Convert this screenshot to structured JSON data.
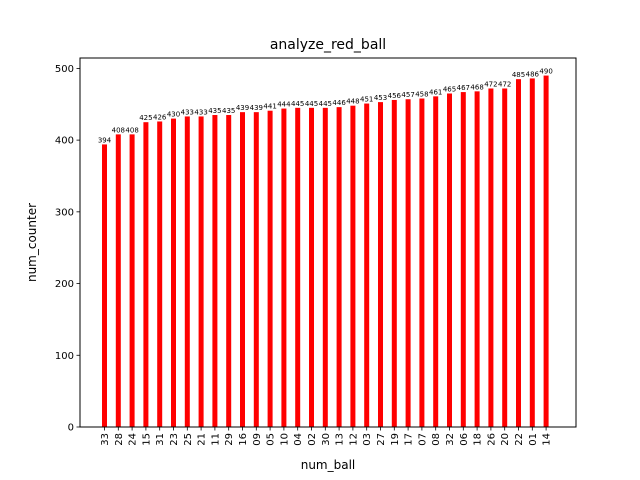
{
  "chart_data": {
    "type": "bar",
    "title": "analyze_red_ball",
    "xlabel": "num_ball",
    "ylabel": "num_counter",
    "categories": [
      "33",
      "28",
      "24",
      "15",
      "31",
      "23",
      "25",
      "21",
      "11",
      "29",
      "16",
      "09",
      "05",
      "10",
      "04",
      "02",
      "30",
      "13",
      "12",
      "03",
      "27",
      "19",
      "17",
      "07",
      "08",
      "32",
      "06",
      "18",
      "26",
      "20",
      "22",
      "01",
      "14"
    ],
    "values": [
      394,
      408,
      408,
      425,
      426,
      430,
      433,
      433,
      435,
      435,
      439,
      439,
      441,
      444,
      445,
      445,
      445,
      446,
      448,
      451,
      453,
      456,
      457,
      458,
      461,
      465,
      467,
      468,
      472,
      472,
      485,
      486,
      490
    ],
    "yticks": [
      0,
      100,
      200,
      300,
      400,
      500
    ],
    "ylim": [
      0,
      514.5
    ],
    "bar_color": "#ff0000",
    "grid": false,
    "legend": "none"
  }
}
